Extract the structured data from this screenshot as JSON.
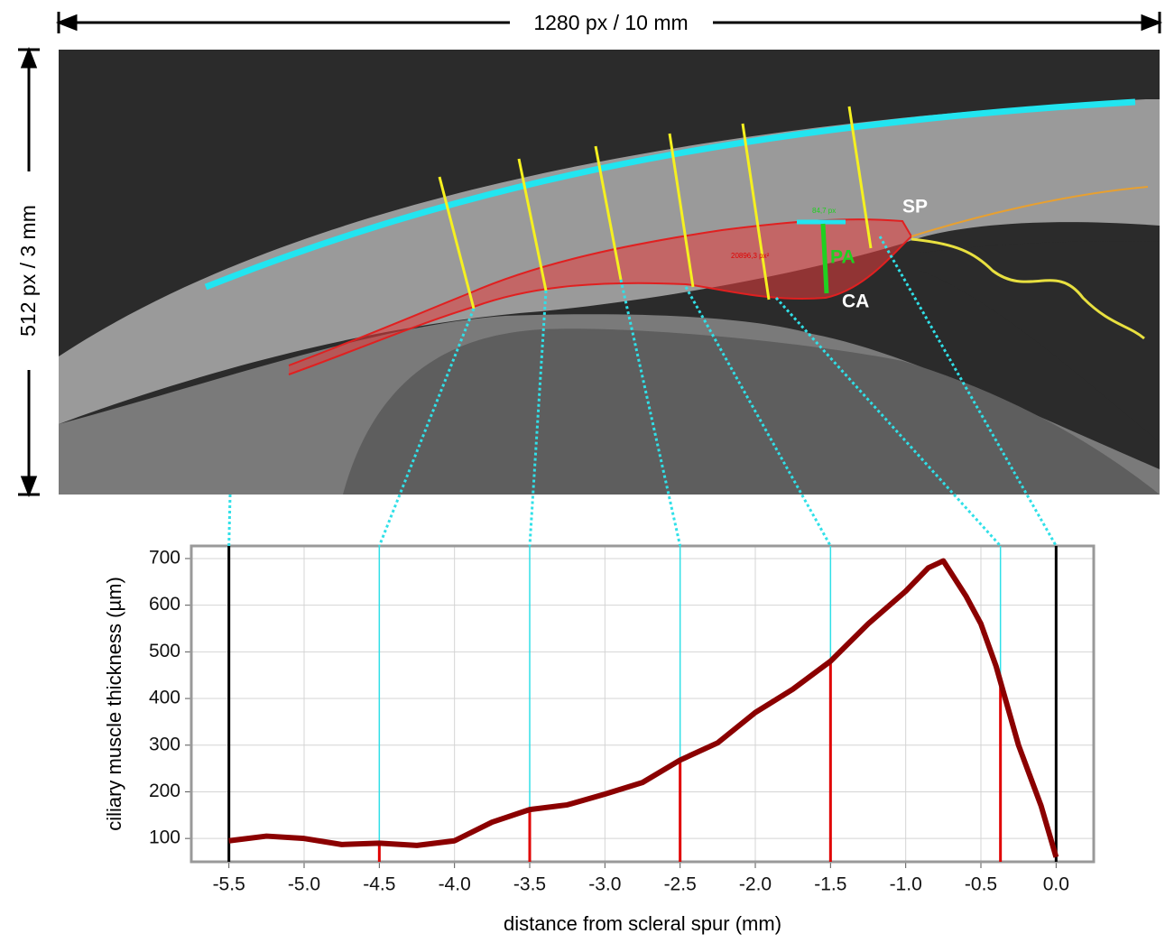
{
  "image_annotations": {
    "width_label": "1280 px / 10 mm",
    "height_label": "512 px / 3 mm",
    "sp": "SP",
    "ca": "CA",
    "pa": "PA",
    "distance_label": "84,7 px",
    "area_label": "20896,3 px²"
  },
  "chart_data": {
    "type": "line",
    "x_label": "distance from scleral spur (mm)",
    "y_label": "ciliary muscle thickness (µm)",
    "x": [
      -5.5,
      -5.25,
      -5.0,
      -4.75,
      -4.5,
      -4.25,
      -4.0,
      -3.75,
      -3.5,
      -3.25,
      -3.0,
      -2.75,
      -2.5,
      -2.25,
      -2.0,
      -1.75,
      -1.5,
      -1.25,
      -1.0,
      -0.85,
      -0.75,
      -0.6,
      -0.5,
      -0.4,
      -0.25,
      -0.1,
      0.0
    ],
    "values": [
      95,
      105,
      100,
      87,
      90,
      85,
      95,
      135,
      162,
      172,
      195,
      220,
      268,
      305,
      370,
      420,
      480,
      560,
      630,
      680,
      695,
      620,
      560,
      470,
      300,
      170,
      60
    ],
    "color": "#8b0000",
    "markers": [
      -5.5,
      -4.5,
      -3.5,
      -2.5,
      -1.5,
      -0.37,
      0.0
    ],
    "xlim": [
      -5.75,
      0.25
    ],
    "ylim": [
      50,
      727
    ],
    "xticks": [
      -5.5,
      {
        "value": -5,
        "label": "-5.0"
      },
      -4.5,
      {
        "value": -4,
        "label": "-4.0"
      },
      -3.5,
      {
        "value": -3,
        "label": "-3.0"
      },
      -2.5,
      {
        "value": -2,
        "label": "-2.0"
      },
      -1.5,
      {
        "value": -1,
        "label": "-1.0"
      },
      -0.5,
      {
        "value": 0,
        "label": "0.0"
      }
    ],
    "yticks": [
      100,
      200,
      300,
      400,
      500,
      600,
      700
    ],
    "grid": true
  }
}
